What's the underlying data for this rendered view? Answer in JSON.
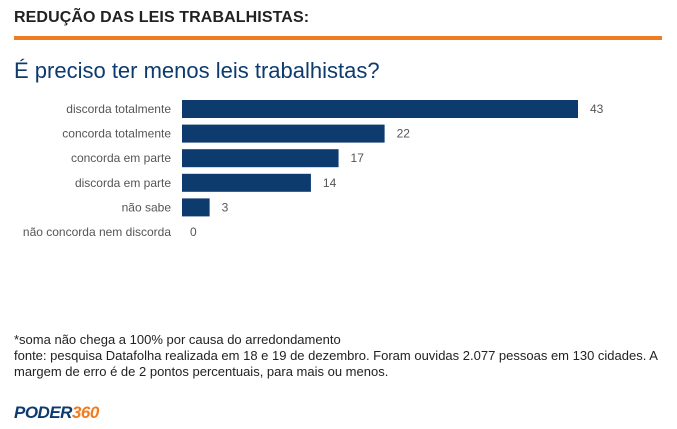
{
  "header": {
    "title": "REDUÇÃO DAS LEIS TRABALHISTAS:"
  },
  "colors": {
    "accent": "#f07c21",
    "bar": "#0d3b6e",
    "title": "#0d3b6e"
  },
  "chart_data": {
    "type": "bar",
    "orientation": "horizontal",
    "title": "É preciso ter menos leis trabalhistas?",
    "categories": [
      "discorda totalmente",
      "concorda totalmente",
      "concorda em parte",
      "discorda em parte",
      "não sabe",
      "não concorda nem discorda"
    ],
    "values": [
      43,
      22,
      17,
      14,
      3,
      0
    ],
    "xlim": [
      0,
      43
    ],
    "grid": false,
    "data_labels": true
  },
  "footnotes": {
    "line1": "*soma não chega a 100% por causa do arredondamento",
    "line2": "fonte: pesquisa Datafolha realizada em 18 e 19 de dezembro. Foram ouvidas 2.077 pessoas em 130 cidades. A margem de erro é de 2 pontos percentuais, para mais ou menos."
  },
  "logo": {
    "part1": "PODER",
    "part2": "360"
  }
}
